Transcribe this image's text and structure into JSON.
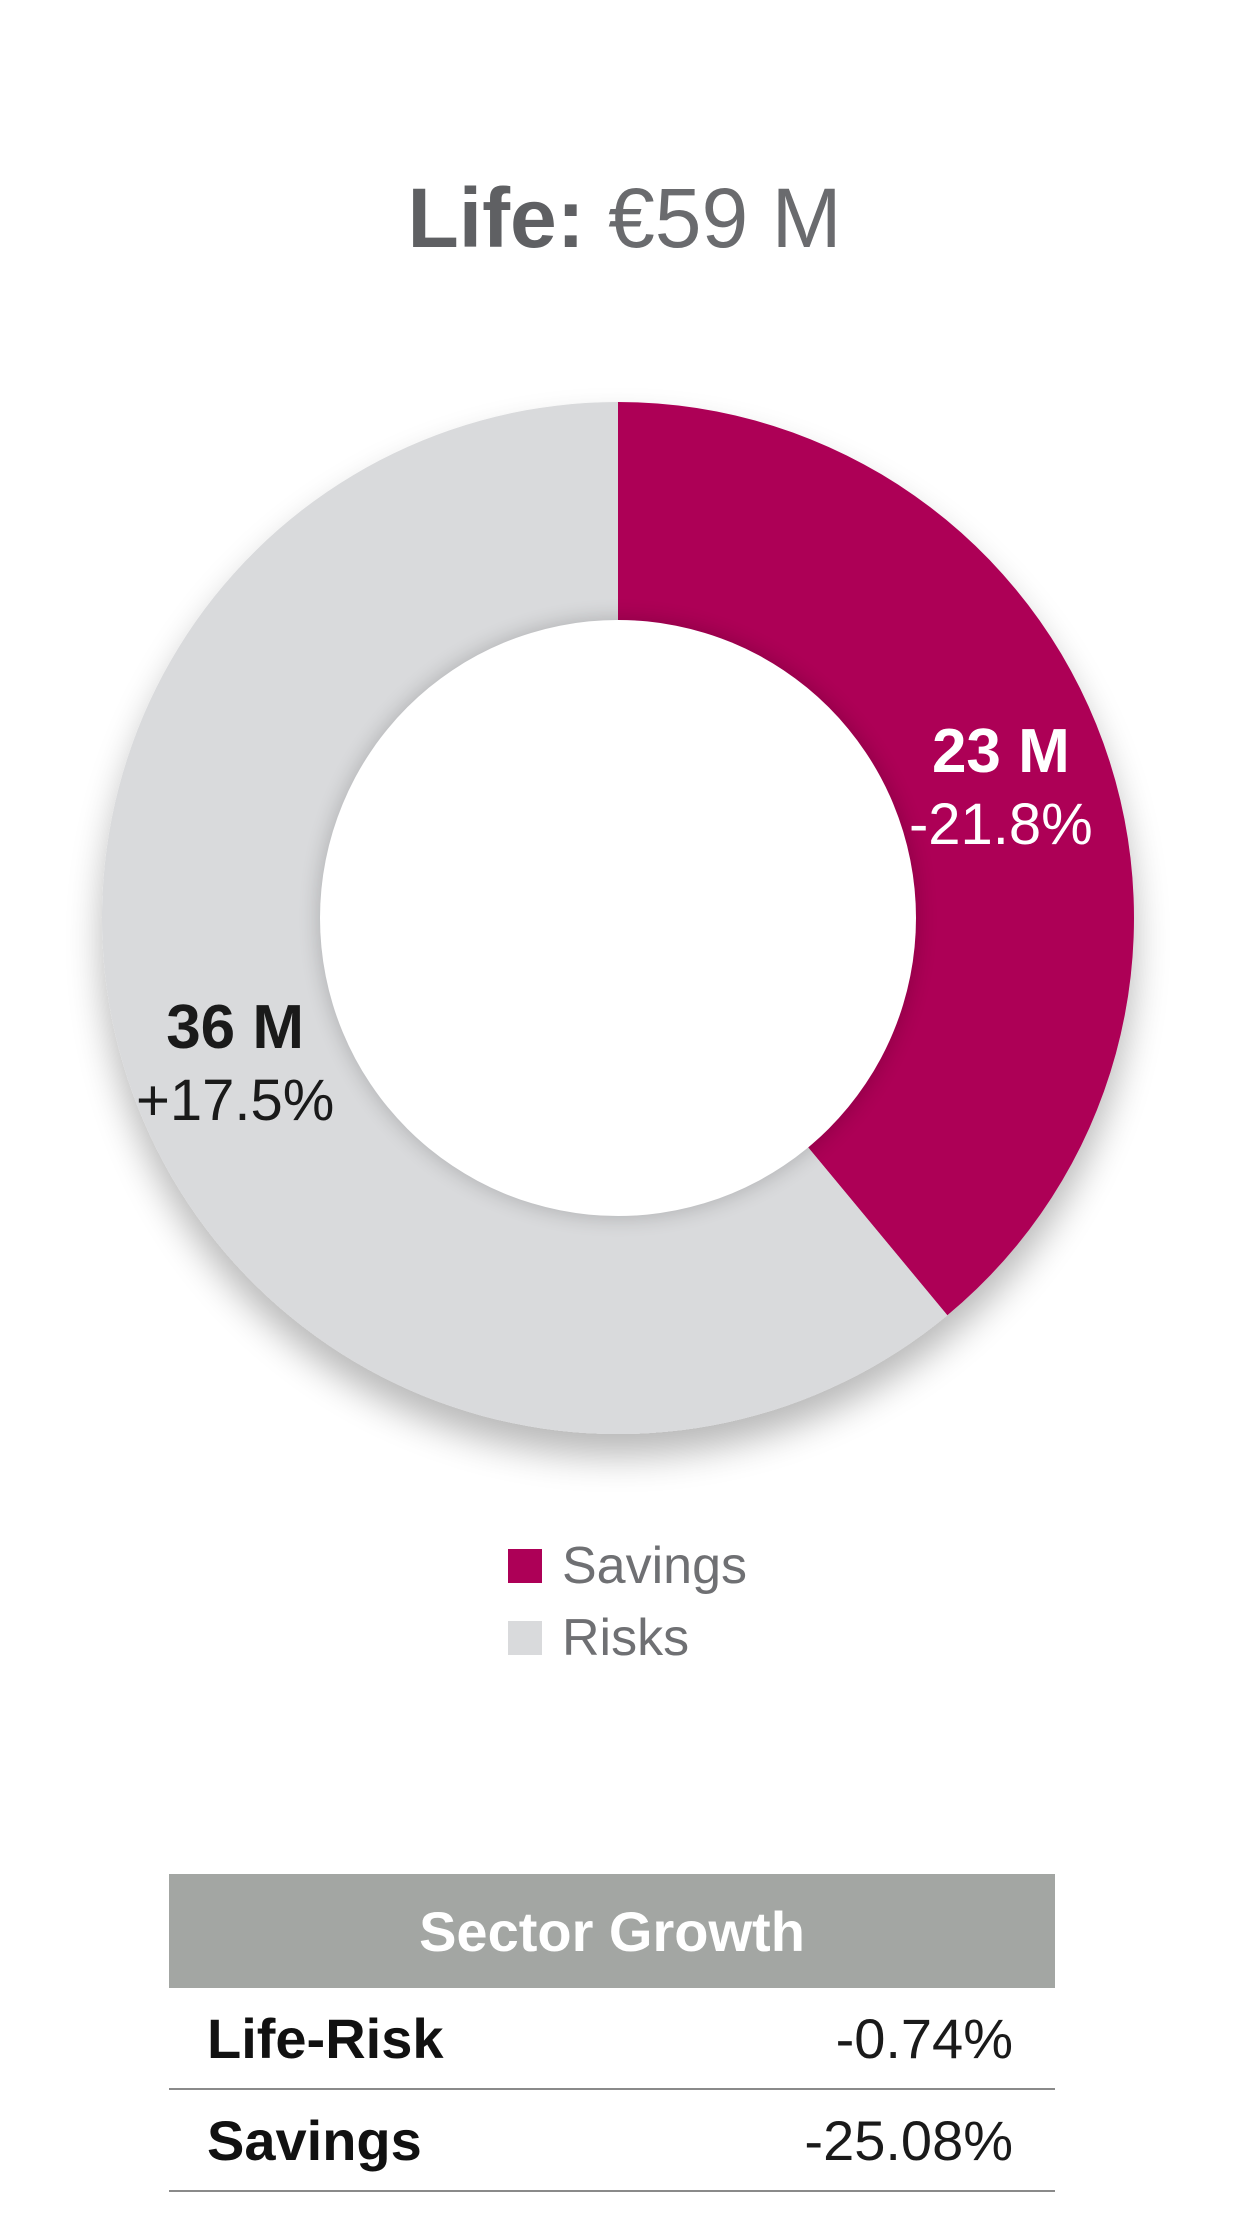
{
  "title": {
    "label": "Life:",
    "value": "€59 M"
  },
  "chart_data": {
    "type": "pie",
    "style": "donut",
    "slices": [
      {
        "name": "Savings",
        "value": 23,
        "value_label": "23 M",
        "change_label": "-21.8%",
        "color": "#ad0057"
      },
      {
        "name": "Risks",
        "value": 36,
        "value_label": "36 M",
        "change_label": "+17.5%",
        "color": "#d9dadc"
      }
    ],
    "legend": [
      {
        "label": "Savings",
        "color": "#ad0057"
      },
      {
        "label": "Risks",
        "color": "#d9dadc"
      }
    ],
    "legend_position": "bottom"
  },
  "table": {
    "header": "Sector Growth",
    "rows": [
      {
        "name": "Life-Risk",
        "value": "-0.74%"
      },
      {
        "name": "Savings",
        "value": "-25.08%"
      }
    ]
  }
}
